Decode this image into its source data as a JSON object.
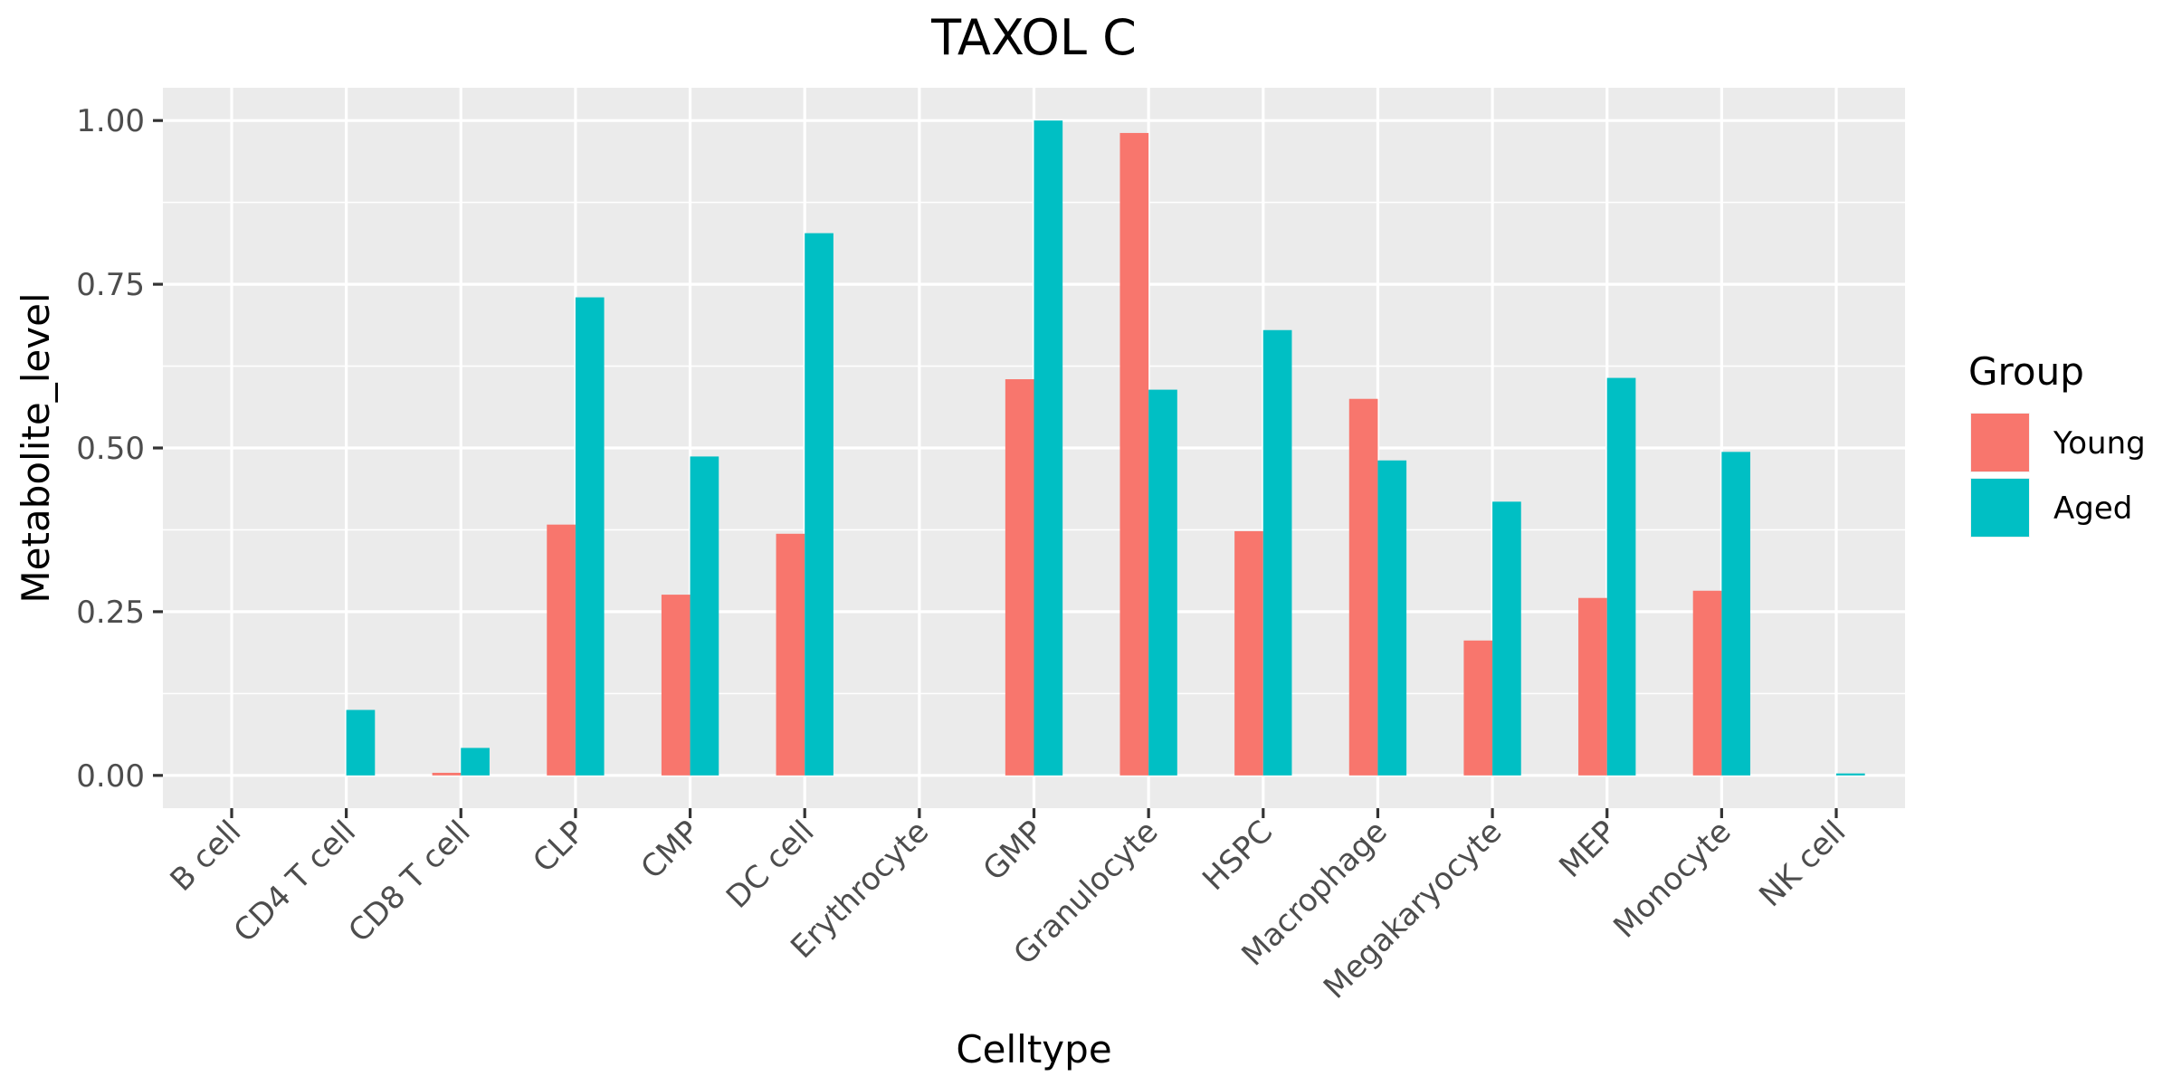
{
  "chart_data": {
    "type": "bar",
    "title": "TAXOL C",
    "xlabel": "Celltype",
    "ylabel": "Metabolite_level",
    "categories": [
      "B cell",
      "CD4 T cell",
      "CD8 T cell",
      "CLP",
      "CMP",
      "DC cell",
      "Erythrocyte",
      "GMP",
      "Granulocyte",
      "HSPC",
      "Macrophage",
      "Megakaryocyte",
      "MEP",
      "Monocyte",
      "NK cell"
    ],
    "series": [
      {
        "name": "Young",
        "color": "#F8766D",
        "values": [
          0,
          0,
          0.004,
          0.383,
          0.276,
          0.369,
          0,
          0.605,
          0.981,
          0.373,
          0.575,
          0.206,
          0.271,
          0.282,
          0
        ]
      },
      {
        "name": "Aged",
        "color": "#00BFC4",
        "values": [
          0,
          0.1,
          0.042,
          0.73,
          0.487,
          0.828,
          0,
          1.0,
          0.589,
          0.68,
          0.481,
          0.418,
          0.607,
          0.494,
          0.003
        ]
      }
    ],
    "ylim": [
      -0.05,
      1.05
    ],
    "yticks": [
      0,
      0.25,
      0.5,
      0.75,
      1
    ],
    "ytick_labels": [
      "0.00",
      "0.25",
      "0.50",
      "0.75",
      "1.00"
    ],
    "grid": true,
    "legend": {
      "title": "Group",
      "position": "right"
    },
    "theme": {
      "panel_bg": "#EBEBEB",
      "grid_color": "#FFFFFF"
    }
  }
}
